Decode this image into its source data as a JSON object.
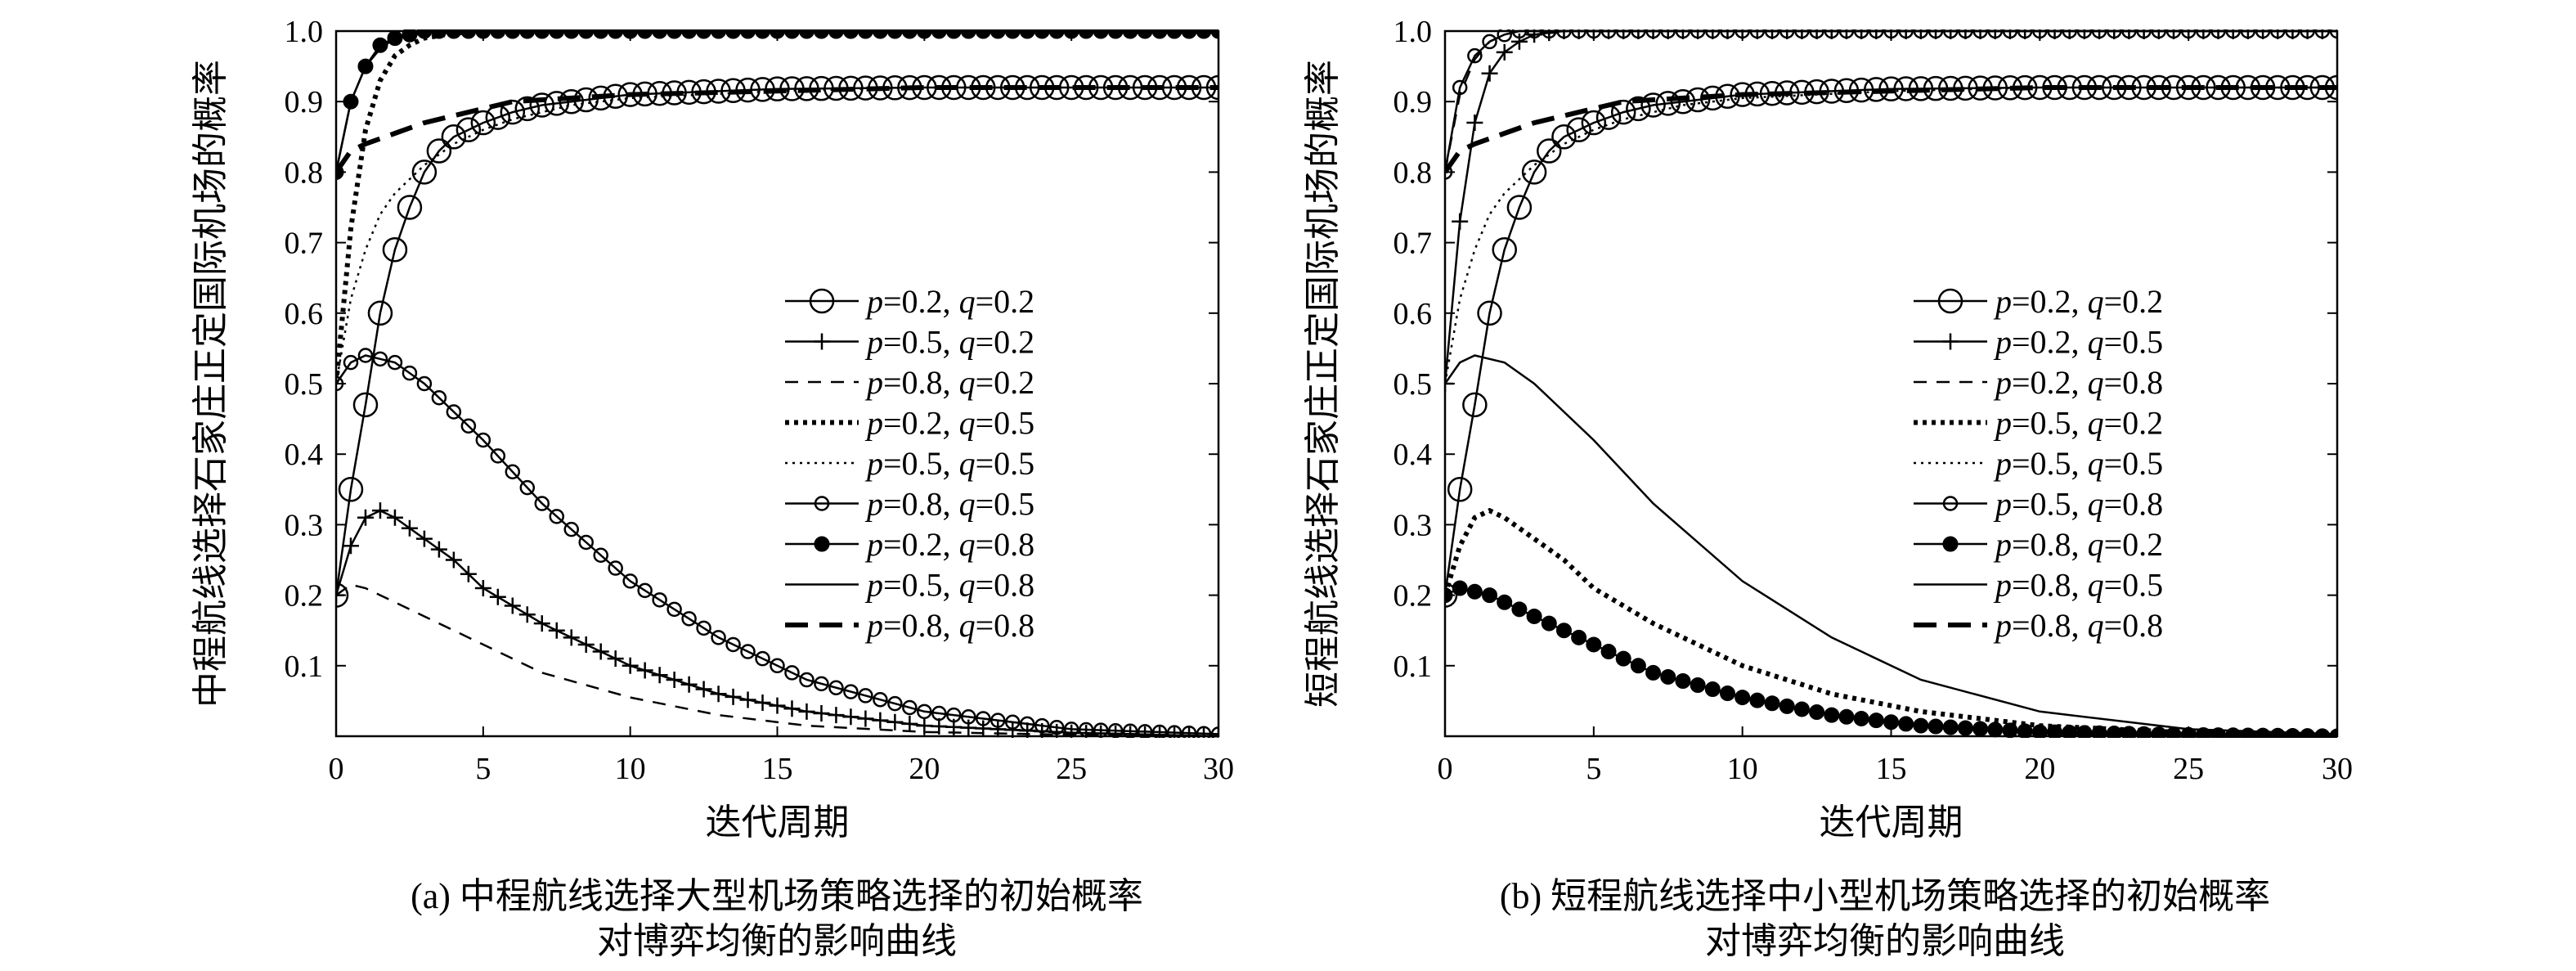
{
  "chart_data": [
    {
      "type": "line",
      "xlabel": "迭代周期",
      "ylabel": "中程航线选择石家庄正定国际机场的概率",
      "xlim": [
        0,
        30
      ],
      "ylim": [
        0,
        1.0
      ],
      "xticks": [
        0,
        5,
        10,
        15,
        20,
        25,
        30
      ],
      "yticks": [
        0.1,
        0.2,
        0.3,
        0.4,
        0.5,
        0.6,
        0.7,
        0.8,
        0.9,
        1.0
      ],
      "legend_position": "center-right",
      "caption": [
        "(a) 中程航线选择大型机场策略选择的初始概率",
        "对博弈均衡的影响曲线"
      ],
      "series": [
        {
          "name": "p=0.2, q=0.2",
          "pLabel": "p",
          "pVal": "=0.2, ",
          "qLabel": "q",
          "qVal": "=0.2",
          "marker": "big-circle",
          "x": [
            0,
            0.5,
            1,
            1.5,
            2,
            2.5,
            3,
            3.5,
            4,
            4.5,
            5,
            6,
            7,
            8,
            10,
            15,
            20,
            30
          ],
          "y": [
            0.2,
            0.35,
            0.47,
            0.6,
            0.69,
            0.75,
            0.8,
            0.83,
            0.85,
            0.86,
            0.87,
            0.885,
            0.895,
            0.9,
            0.91,
            0.918,
            0.92,
            0.92
          ]
        },
        {
          "name": "p=0.5, q=0.2",
          "pLabel": "p",
          "pVal": "=0.5, ",
          "qLabel": "q",
          "qVal": "=0.2",
          "marker": "plus",
          "x": [
            0,
            0.5,
            1,
            1.5,
            2,
            3,
            4,
            5,
            7,
            10,
            13,
            16,
            20,
            25,
            30
          ],
          "y": [
            0.2,
            0.27,
            0.31,
            0.32,
            0.31,
            0.28,
            0.25,
            0.21,
            0.16,
            0.1,
            0.06,
            0.035,
            0.015,
            0.005,
            0.0
          ]
        },
        {
          "name": "p=0.8, q=0.2",
          "pLabel": "p",
          "pVal": "=0.8, ",
          "qLabel": "q",
          "qVal": "=0.2",
          "marker": "dashed",
          "x": [
            0,
            0.5,
            1,
            1.5,
            2,
            3,
            5,
            7,
            10,
            13,
            16,
            20,
            25,
            30
          ],
          "y": [
            0.2,
            0.215,
            0.21,
            0.2,
            0.19,
            0.17,
            0.13,
            0.09,
            0.055,
            0.03,
            0.015,
            0.006,
            0.002,
            0.0
          ]
        },
        {
          "name": "p=0.2, q=0.5",
          "pLabel": "p",
          "pVal": "=0.2, ",
          "qLabel": "q",
          "qVal": "=0.5",
          "marker": "dotted-thick",
          "x": [
            0,
            0.5,
            1,
            1.5,
            2,
            2.5,
            3,
            4,
            5,
            30
          ],
          "y": [
            0.5,
            0.72,
            0.86,
            0.93,
            0.965,
            0.98,
            0.99,
            0.997,
            1.0,
            1.0
          ]
        },
        {
          "name": "p=0.5, q=0.5",
          "pLabel": "p",
          "pVal": "=0.5, ",
          "qLabel": "q",
          "qVal": "=0.5",
          "marker": "dotted-small",
          "x": [
            0,
            0.5,
            1,
            1.5,
            2,
            3,
            4,
            5,
            6,
            8,
            10,
            15,
            20,
            30
          ],
          "y": [
            0.5,
            0.62,
            0.69,
            0.74,
            0.77,
            0.81,
            0.84,
            0.86,
            0.875,
            0.895,
            0.905,
            0.915,
            0.92,
            0.92
          ]
        },
        {
          "name": "p=0.8, q=0.5",
          "pLabel": "p",
          "pVal": "=0.8, ",
          "qLabel": "q",
          "qVal": "=0.5",
          "marker": "small-circle",
          "x": [
            0,
            0.5,
            1,
            1.5,
            2,
            3,
            4,
            5,
            7,
            10,
            13,
            16,
            20,
            25,
            30
          ],
          "y": [
            0.5,
            0.53,
            0.54,
            0.535,
            0.53,
            0.5,
            0.46,
            0.42,
            0.33,
            0.22,
            0.14,
            0.08,
            0.035,
            0.01,
            0.003
          ]
        },
        {
          "name": "p=0.2, q=0.8",
          "pLabel": "p",
          "pVal": "=0.2, ",
          "qLabel": "q",
          "qVal": "=0.8",
          "marker": "filled-circle",
          "x": [
            0,
            0.5,
            1,
            1.5,
            2,
            2.5,
            3,
            4,
            5,
            30
          ],
          "y": [
            0.8,
            0.9,
            0.95,
            0.98,
            0.99,
            0.995,
            1.0,
            1.0,
            1.0,
            1.0
          ]
        },
        {
          "name": "p=0.5, q=0.8",
          "pLabel": "p",
          "pVal": "=0.5, ",
          "qLabel": "q",
          "qVal": "=0.8",
          "marker": "solid",
          "x": [
            0,
            0.5,
            1,
            1.5,
            2,
            3,
            4,
            5,
            30
          ],
          "y": [
            0.8,
            0.9,
            0.95,
            0.975,
            0.99,
            0.997,
            1.0,
            1.0,
            1.0
          ]
        },
        {
          "name": "p=0.8, q=0.8",
          "pLabel": "p",
          "pVal": "=0.8, ",
          "qLabel": "q",
          "qVal": "=0.8",
          "marker": "dashed-thick",
          "x": [
            0,
            0.5,
            1,
            2,
            3,
            4,
            5,
            6,
            8,
            10,
            15,
            20,
            30
          ],
          "y": [
            0.8,
            0.83,
            0.84,
            0.855,
            0.87,
            0.88,
            0.89,
            0.9,
            0.905,
            0.91,
            0.915,
            0.92,
            0.92
          ]
        }
      ]
    },
    {
      "type": "line",
      "xlabel": "迭代周期",
      "ylabel": "短程航线选择石家庄正定国际机场的概率",
      "xlim": [
        0,
        30
      ],
      "ylim": [
        0,
        1.0
      ],
      "xticks": [
        0,
        5,
        10,
        15,
        20,
        25,
        30
      ],
      "yticks": [
        0.1,
        0.2,
        0.3,
        0.4,
        0.5,
        0.6,
        0.7,
        0.8,
        0.9,
        1.0
      ],
      "legend_position": "center-right",
      "caption": [
        "(b) 短程航线选择中小型机场策略选择的初始概率",
        "对博弈均衡的影响曲线"
      ],
      "series": [
        {
          "name": "p=0.2, q=0.2",
          "pLabel": "p",
          "pVal": "=0.2, ",
          "qLabel": "q",
          "qVal": "=0.2",
          "marker": "big-circle",
          "x": [
            0,
            0.5,
            1,
            1.5,
            2,
            2.5,
            3,
            3.5,
            4,
            4.5,
            5,
            6,
            7,
            8,
            10,
            15,
            20,
            30
          ],
          "y": [
            0.2,
            0.35,
            0.47,
            0.6,
            0.69,
            0.75,
            0.8,
            0.83,
            0.85,
            0.86,
            0.87,
            0.885,
            0.895,
            0.9,
            0.91,
            0.918,
            0.92,
            0.92
          ]
        },
        {
          "name": "p=0.2, q=0.5",
          "pLabel": "p",
          "pVal": "=0.2, ",
          "qLabel": "q",
          "qVal": "=0.5",
          "marker": "plus",
          "x": [
            0,
            0.5,
            1,
            1.5,
            2,
            2.5,
            3,
            4,
            5,
            30
          ],
          "y": [
            0.5,
            0.73,
            0.87,
            0.94,
            0.97,
            0.985,
            0.995,
            1.0,
            1.0,
            1.0
          ]
        },
        {
          "name": "p=0.2, q=0.8",
          "pLabel": "p",
          "pVal": "=0.2, ",
          "qLabel": "q",
          "qVal": "=0.8",
          "marker": "dashed",
          "x": [
            0,
            0.5,
            1,
            1.5,
            2,
            2.5,
            3,
            4,
            30
          ],
          "y": [
            0.8,
            0.91,
            0.96,
            0.985,
            0.995,
            1.0,
            1.0,
            1.0,
            1.0
          ]
        },
        {
          "name": "p=0.5, q=0.2",
          "pLabel": "p",
          "pVal": "=0.5, ",
          "qLabel": "q",
          "qVal": "=0.2",
          "marker": "dotted-thick",
          "x": [
            0,
            0.5,
            1,
            1.5,
            2,
            3,
            4,
            5,
            7,
            10,
            13,
            16,
            20,
            25,
            30
          ],
          "y": [
            0.2,
            0.27,
            0.31,
            0.32,
            0.31,
            0.28,
            0.25,
            0.21,
            0.16,
            0.1,
            0.06,
            0.035,
            0.015,
            0.005,
            0.0
          ]
        },
        {
          "name": "p=0.5, q=0.5",
          "pLabel": "p",
          "pVal": "=0.5, ",
          "qLabel": "q",
          "qVal": "=0.5",
          "marker": "dotted-small",
          "x": [
            0,
            0.5,
            1,
            1.5,
            2,
            3,
            4,
            5,
            6,
            8,
            10,
            15,
            20,
            30
          ],
          "y": [
            0.5,
            0.62,
            0.69,
            0.74,
            0.77,
            0.81,
            0.84,
            0.86,
            0.875,
            0.895,
            0.905,
            0.915,
            0.92,
            0.92
          ]
        },
        {
          "name": "p=0.5, q=0.8",
          "pLabel": "p",
          "pVal": "=0.5, ",
          "qLabel": "q",
          "qVal": "=0.8",
          "marker": "small-circle",
          "x": [
            0,
            0.5,
            1,
            1.5,
            2,
            2.5,
            3,
            4,
            5,
            30
          ],
          "y": [
            0.8,
            0.92,
            0.965,
            0.985,
            0.995,
            1.0,
            1.0,
            1.0,
            1.0,
            1.0
          ]
        },
        {
          "name": "p=0.8, q=0.2",
          "pLabel": "p",
          "pVal": "=0.8, ",
          "qLabel": "q",
          "qVal": "=0.2",
          "marker": "filled-circle",
          "x": [
            0,
            0.5,
            1,
            1.5,
            2,
            3,
            5,
            7,
            10,
            13,
            16,
            20,
            25,
            30
          ],
          "y": [
            0.2,
            0.21,
            0.205,
            0.2,
            0.19,
            0.17,
            0.13,
            0.09,
            0.055,
            0.03,
            0.015,
            0.006,
            0.002,
            0.0
          ]
        },
        {
          "name": "p=0.8, q=0.5",
          "pLabel": "p",
          "pVal": "=0.8, ",
          "qLabel": "q",
          "qVal": "=0.5",
          "marker": "solid",
          "x": [
            0,
            0.5,
            1,
            1.5,
            2,
            3,
            4,
            5,
            7,
            10,
            13,
            16,
            20,
            25,
            30
          ],
          "y": [
            0.5,
            0.53,
            0.54,
            0.535,
            0.53,
            0.5,
            0.46,
            0.42,
            0.33,
            0.22,
            0.14,
            0.08,
            0.035,
            0.01,
            0.003
          ]
        },
        {
          "name": "p=0.8, q=0.8",
          "pLabel": "p",
          "pVal": "=0.8, ",
          "qLabel": "q",
          "qVal": "=0.8",
          "marker": "dashed-thick",
          "x": [
            0,
            0.5,
            1,
            2,
            3,
            4,
            5,
            6,
            8,
            10,
            15,
            20,
            30
          ],
          "y": [
            0.8,
            0.83,
            0.84,
            0.855,
            0.87,
            0.88,
            0.89,
            0.9,
            0.905,
            0.91,
            0.915,
            0.92,
            0.92
          ]
        }
      ]
    }
  ]
}
